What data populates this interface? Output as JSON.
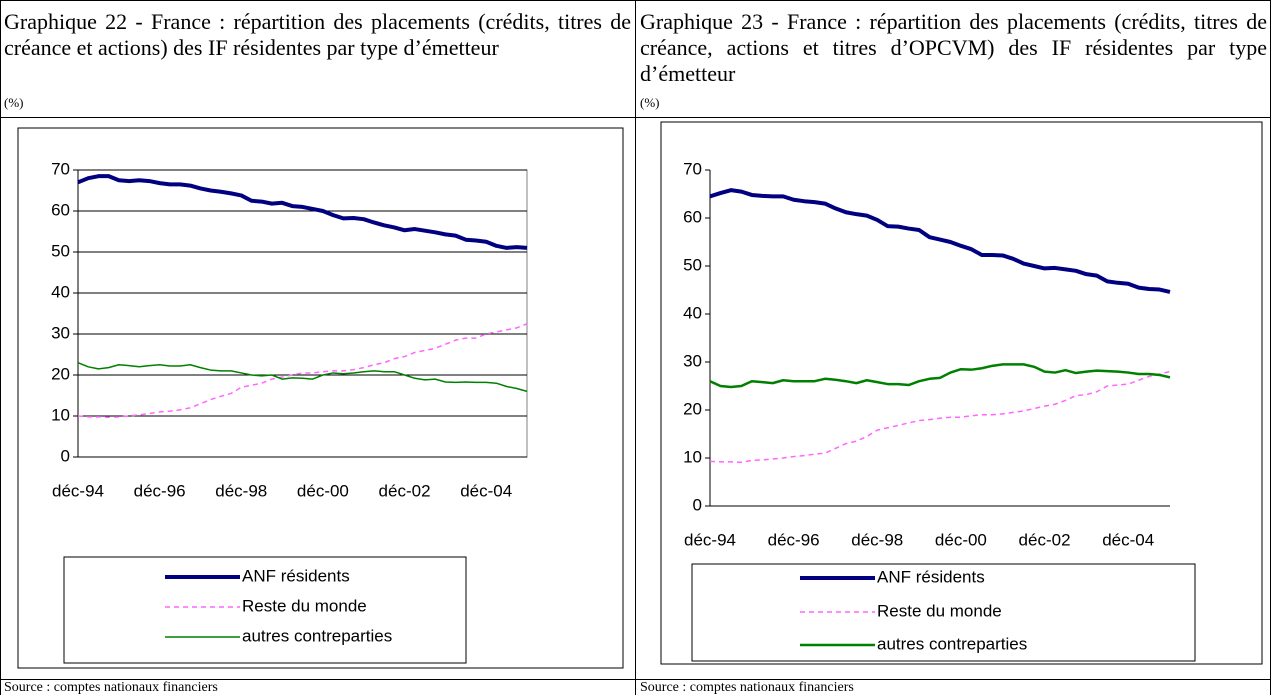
{
  "panels": [
    {
      "title": "Graphique 22 - France : répartition des placements (crédits, titres de créance et actions) des IF résidentes par type d’émetteur",
      "unit": "(%)",
      "source": "Source : comptes nationaux financiers",
      "chart_data": {
        "type": "line",
        "categories": [
          "déc-94",
          null,
          null,
          null,
          null,
          null,
          null,
          null,
          "déc-96",
          null,
          null,
          null,
          null,
          null,
          null,
          null,
          "déc-98",
          null,
          null,
          null,
          null,
          null,
          null,
          null,
          "déc-00",
          null,
          null,
          null,
          null,
          null,
          null,
          null,
          "déc-02",
          null,
          null,
          null,
          null,
          null,
          null,
          null,
          "déc-04",
          null,
          null,
          null,
          null
        ],
        "ylim": [
          0,
          70
        ],
        "yticks": [
          0,
          10,
          20,
          30,
          40,
          50,
          60,
          70
        ],
        "grid": true,
        "series": [
          {
            "name": "ANF résidents",
            "color": "#000080",
            "line_style": "solid",
            "line_width": 4,
            "values": [
              67,
              68,
              68.5,
              68.5,
              67.5,
              67.3,
              67.5,
              67.3,
              66.8,
              66.5,
              66.5,
              66.2,
              65.5,
              65,
              64.7,
              64.3,
              63.8,
              62.5,
              62.3,
              61.8,
              62,
              61.2,
              61,
              60.5,
              60,
              59,
              58.2,
              58.3,
              58,
              57.2,
              56.5,
              56,
              55.3,
              55.6,
              55.2,
              54.8,
              54.3,
              54,
              53,
              52.8,
              52.5,
              51.5,
              51,
              51.2,
              51
            ]
          },
          {
            "name": "Reste du monde",
            "color": "#ff66ff",
            "line_style": "dashed",
            "line_width": 1.5,
            "values": [
              10,
              9.8,
              9.8,
              9.7,
              9.8,
              10,
              10.3,
              10.6,
              11,
              11.2,
              11.5,
              12,
              13,
              14,
              14.8,
              15.5,
              17,
              17.5,
              18,
              19,
              19.5,
              20,
              20.5,
              20.5,
              20.8,
              21,
              21,
              21.3,
              21.8,
              22.5,
              23,
              24,
              24.5,
              25.5,
              26,
              26.5,
              27.5,
              28.5,
              29,
              29,
              30,
              30.5,
              31,
              31.5,
              32.5
            ]
          },
          {
            "name": "autres contreparties",
            "color": "#008000",
            "line_style": "solid",
            "line_width": 1.5,
            "values": [
              23,
              22,
              21.5,
              21.8,
              22.5,
              22.3,
              22,
              22.3,
              22.5,
              22.2,
              22.2,
              22.5,
              21.8,
              21.2,
              21,
              21,
              20.5,
              20,
              19.8,
              20,
              19,
              19.3,
              19.2,
              19,
              20,
              20.5,
              20.3,
              20.5,
              20.8,
              21,
              20.8,
              20.8,
              20,
              19.2,
              18.8,
              19,
              18.3,
              18.2,
              18.3,
              18.2,
              18.2,
              18,
              17.2,
              16.7,
              16
            ]
          }
        ]
      }
    },
    {
      "title": "Graphique 23 - France : répartition des placements (crédits, titres de créance, actions et titres d’OPCVM) des IF résidentes par type d’émetteur",
      "unit": "(%)",
      "source": "Source : comptes nationaux financiers",
      "chart_data": {
        "type": "line",
        "categories": [
          "déc-94",
          null,
          null,
          null,
          null,
          null,
          null,
          null,
          "déc-96",
          null,
          null,
          null,
          null,
          null,
          null,
          null,
          "déc-98",
          null,
          null,
          null,
          null,
          null,
          null,
          null,
          "déc-00",
          null,
          null,
          null,
          null,
          null,
          null,
          null,
          "déc-02",
          null,
          null,
          null,
          null,
          null,
          null,
          null,
          "déc-04",
          null,
          null,
          null,
          null
        ],
        "ylim": [
          0,
          70
        ],
        "yticks": [
          0,
          10,
          20,
          30,
          40,
          50,
          60,
          70
        ],
        "grid": false,
        "series": [
          {
            "name": "ANF résidents",
            "color": "#000080",
            "line_style": "solid",
            "line_width": 4,
            "values": [
              64.5,
              65.2,
              65.8,
              65.5,
              64.8,
              64.6,
              64.5,
              64.5,
              63.8,
              63.5,
              63.3,
              63,
              62,
              61.2,
              60.8,
              60.5,
              59.6,
              58.3,
              58.2,
              57.8,
              57.5,
              56,
              55.5,
              55,
              54.2,
              53.5,
              52.3,
              52.3,
              52.2,
              51.5,
              50.5,
              50,
              49.5,
              49.6,
              49.3,
              49,
              48.3,
              48,
              46.8,
              46.5,
              46.3,
              45.5,
              45.2,
              45.1,
              44.6
            ]
          },
          {
            "name": "Reste du monde",
            "color": "#ff66ff",
            "line_style": "dashed",
            "line_width": 1.5,
            "values": [
              9.3,
              9.2,
              9.2,
              9.1,
              9.5,
              9.6,
              9.8,
              10,
              10.3,
              10.5,
              10.8,
              11,
              12,
              13,
              13.5,
              14.5,
              15.8,
              16.3,
              16.8,
              17.3,
              17.8,
              18,
              18.3,
              18.5,
              18.5,
              18.8,
              19,
              19,
              19.2,
              19.5,
              19.8,
              20.3,
              20.8,
              21.2,
              22,
              23,
              23.2,
              23.8,
              25,
              25.2,
              25.4,
              26.2,
              27,
              27.5,
              28
            ]
          },
          {
            "name": "autres contreparties",
            "color": "#008000",
            "line_style": "solid",
            "line_width": 2.5,
            "values": [
              26,
              25,
              24.8,
              25,
              26,
              25.8,
              25.6,
              26.2,
              26,
              26,
              26,
              26.5,
              26.3,
              26,
              25.6,
              26.2,
              25.8,
              25.4,
              25.4,
              25.2,
              26,
              26.5,
              26.7,
              27.8,
              28.5,
              28.4,
              28.7,
              29.2,
              29.5,
              29.5,
              29.5,
              29,
              28,
              27.8,
              28.3,
              27.7,
              28,
              28.2,
              28.1,
              28,
              27.8,
              27.5,
              27.5,
              27.3,
              26.8
            ]
          }
        ]
      }
    }
  ]
}
